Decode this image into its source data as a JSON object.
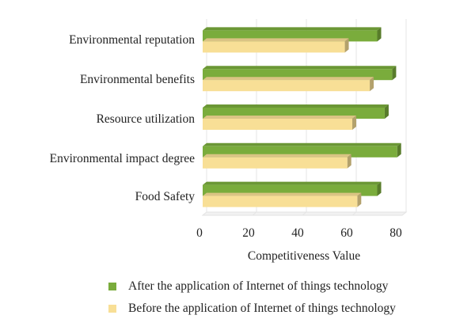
{
  "chart_data": {
    "type": "bar",
    "orientation": "horizontal",
    "style": "3d",
    "categories": [
      "Environmental reputation",
      "Environmental benefits",
      "Resource utilization",
      "Environmental impact degree",
      "Food Safety"
    ],
    "series": [
      {
        "name": "After the application of Internet of things technology",
        "color": "#7aac3c",
        "values": [
          70,
          76,
          73,
          78,
          70
        ]
      },
      {
        "name": "Before the application of Internet of things technology",
        "color": "#f8df96",
        "values": [
          57,
          67,
          60,
          58,
          62
        ]
      }
    ],
    "xlim": [
      0,
      80
    ],
    "xticks": [
      "0",
      "20",
      "40",
      "60",
      "80"
    ],
    "xlabel": "Competitiveness Value",
    "ylabel": "",
    "grid": true,
    "legend_position": "bottom"
  }
}
